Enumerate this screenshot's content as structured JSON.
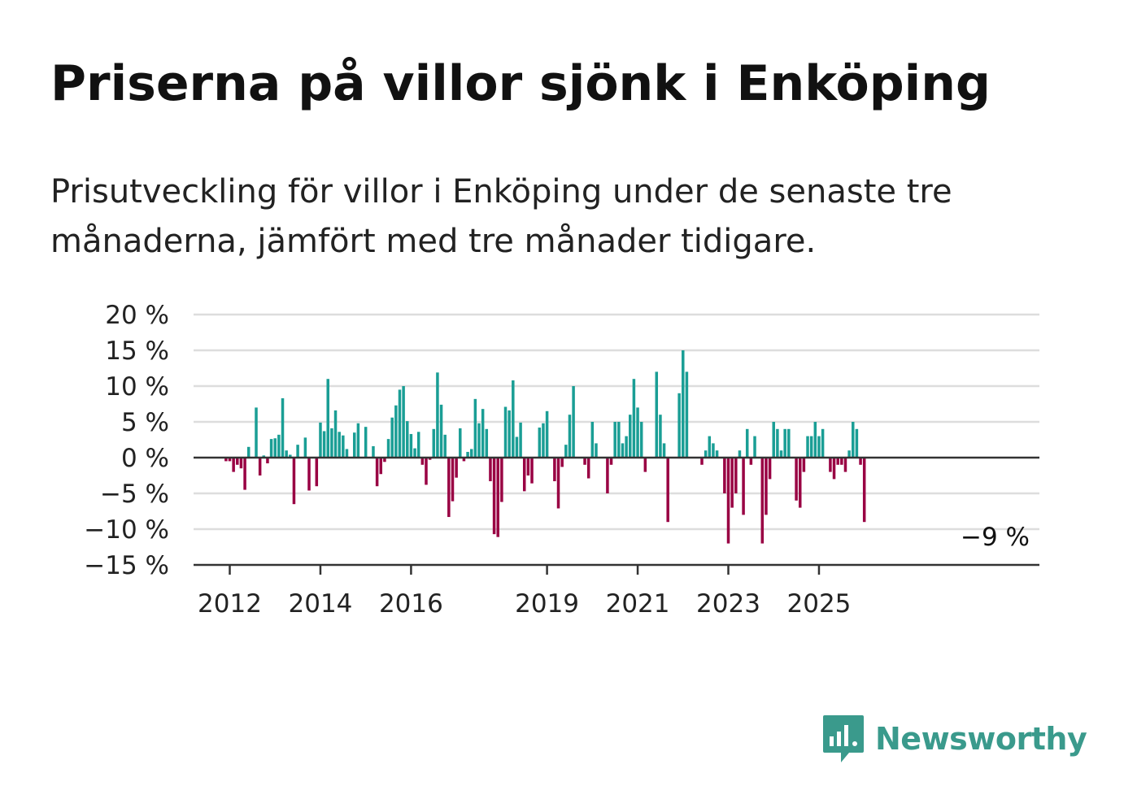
{
  "title": "Priserna på villor sjönk i Enköping",
  "subtitle": "Prisutveckling för villor i Enköping under de senaste tre månaderna, jämfört med tre månader tidigare.",
  "brand": {
    "name": "Newsworthy",
    "color": "#3a9a8c"
  },
  "colors": {
    "positive": "#1a9e95",
    "negative": "#990043",
    "grid": "#dddddd",
    "axis": "#333333"
  },
  "chart_data": {
    "type": "bar",
    "title": "Priserna på villor sjönk i Enköping",
    "subtitle": "Prisutveckling för villor i Enköping under de senaste tre månaderna, jämfört med tre månader tidigare.",
    "x_start": "2011-06",
    "interval": "month",
    "ylim": [
      -15,
      20
    ],
    "yticks": [
      -15,
      -10,
      -5,
      0,
      5,
      10,
      15,
      20
    ],
    "ytick_labels": [
      "−15 %",
      "−10 %",
      "−5 %",
      "0 %",
      "5 %",
      "10 %",
      "15 %",
      "20 %"
    ],
    "xtick_labels": [
      "2012",
      "2014",
      "2016",
      "2019",
      "2021",
      "2023",
      "2025"
    ],
    "xtick_dates": [
      "2012-01",
      "2014-01",
      "2016-01",
      "2019-01",
      "2021-01",
      "2023-01",
      "2025-01"
    ],
    "grid": true,
    "annotation": "−9 %",
    "values": [
      0,
      0,
      0,
      0,
      0,
      0,
      -0.5,
      -0.5,
      -2,
      -1,
      -1.5,
      -4.5,
      1.5,
      0,
      7,
      -2.5,
      0.3,
      -0.8,
      2.6,
      2.7,
      3.2,
      8.3,
      1,
      0.4,
      -6.5,
      1.8,
      0,
      2.8,
      -4.6,
      0,
      -4,
      4.9,
      3.7,
      11,
      4.1,
      6.6,
      3.6,
      3.1,
      1.2,
      0,
      3.5,
      4.8,
      0,
      4.3,
      0,
      1.6,
      -4,
      -2.3,
      -0.6,
      2.6,
      5.6,
      7.3,
      9.5,
      10,
      5.1,
      3.3,
      1.3,
      3.6,
      -1,
      -3.8,
      -0.3,
      4,
      11.9,
      7.4,
      3.2,
      -8.3,
      -6.1,
      -2.8,
      4.1,
      -0.5,
      0.8,
      1.2,
      8.2,
      4.8,
      6.8,
      4,
      -3.3,
      -10.7,
      -11.1,
      -6.2,
      7.1,
      6.6,
      10.8,
      2.9,
      4.9,
      -4.7,
      -2.5,
      -3.6,
      0,
      4.2,
      4.8,
      6.5,
      0,
      -3.3,
      -7.1,
      -1.3,
      1.8,
      6,
      10,
      0,
      0,
      -1,
      -2.9,
      5,
      2,
      0,
      0,
      -5,
      -1,
      5,
      5,
      2,
      3,
      6,
      11,
      7,
      5,
      -2,
      0,
      0,
      12,
      6,
      2,
      -9,
      0,
      0,
      9,
      15,
      12,
      0,
      0,
      0,
      -1,
      1,
      3,
      2,
      1,
      0,
      -5,
      -12,
      -7,
      -5,
      1,
      -8,
      4,
      -1,
      3,
      0,
      -12,
      -8,
      -3,
      5,
      4,
      1,
      4,
      4,
      0,
      -6,
      -7,
      -2,
      3,
      3,
      5,
      3,
      4,
      0,
      -2,
      -3,
      -1,
      -1,
      -2,
      1,
      5,
      4,
      -1,
      -9
    ]
  }
}
